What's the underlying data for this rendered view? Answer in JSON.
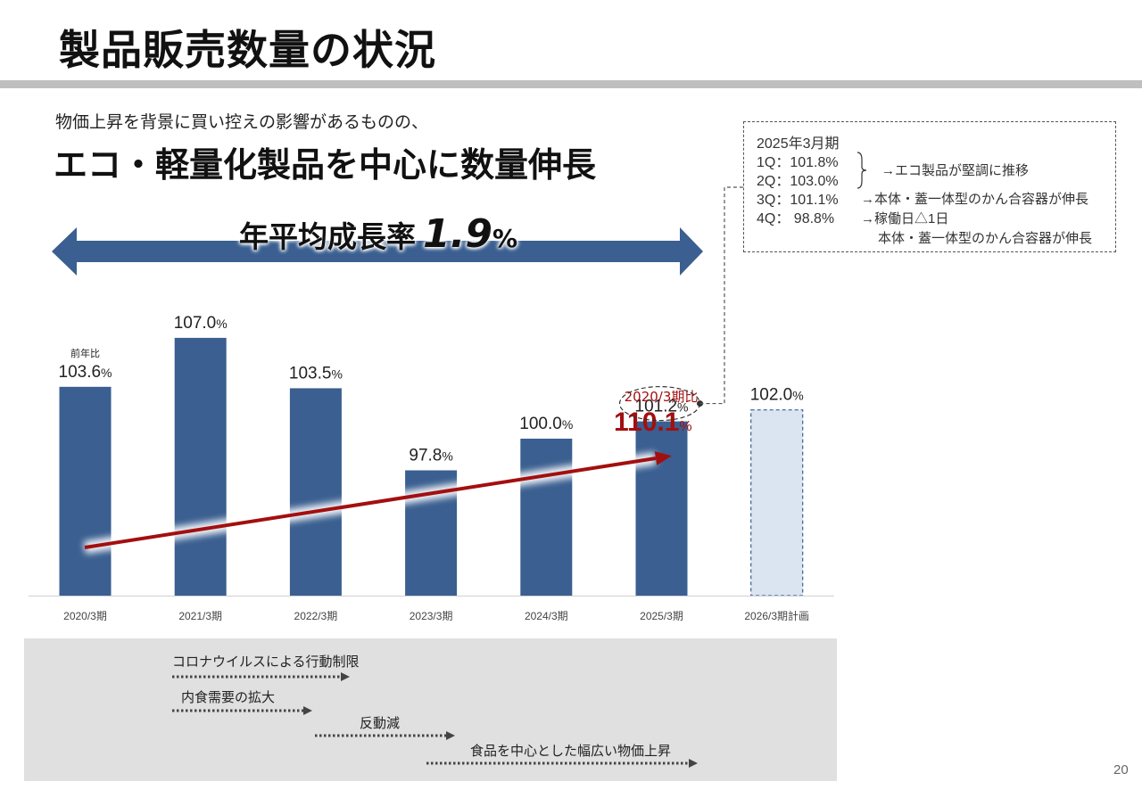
{
  "page": {
    "title": "製品販売数量の状況",
    "subtitle_small": "物価上昇を背景に買い控えの影響があるものの、",
    "subtitle_big": "エコ・軽量化製品を中心に数量伸長",
    "page_number": "20"
  },
  "cagr": {
    "caption": "年平均成長率",
    "value": "1.9",
    "unit": "%"
  },
  "note_box": {
    "period": "2025年3月期",
    "quarters": [
      {
        "label": "1Q：101.8%"
      },
      {
        "label": "2Q：103.0%"
      },
      {
        "label": "3Q：101.1%"
      },
      {
        "label": "4Q：  98.8%"
      }
    ],
    "comments": {
      "q1q2": "→エコ製品が堅調に推移",
      "q3": "→本体・蓋一体型のかん合容器が伸長",
      "q4_line1": "→稼働日△1日",
      "q4_line2": "本体・蓋一体型のかん合容器が伸長"
    }
  },
  "chart_data": {
    "type": "bar",
    "categories": [
      "2020/3期",
      "2021/3期",
      "2022/3期",
      "2023/3期",
      "2024/3期",
      "2025/3期",
      "2026/3期計画"
    ],
    "values": [
      103.6,
      107.0,
      103.5,
      97.8,
      100.0,
      101.2,
      102.0
    ],
    "value_labels": [
      "103.6",
      "107.0",
      "103.5",
      "97.8",
      "100.0",
      "101.2",
      "102.0"
    ],
    "value_unit": "%",
    "plan_index": 6,
    "first_bar_caption": "前年比",
    "colors": {
      "bar": "#3a5f90",
      "plan_fill": "#dbe4f1",
      "plan_border": "#3a5f90",
      "trend_arrow": "#a30f0f"
    },
    "trend_annotation": {
      "label": "2020/3期比",
      "value": "110.1",
      "unit": "%"
    }
  },
  "timeline": [
    {
      "label": "コロナウイルスによる行動制限"
    },
    {
      "label": "内食需要の拡大"
    },
    {
      "label": "反動減"
    },
    {
      "label": "食品を中心とした幅広い物価上昇"
    }
  ]
}
